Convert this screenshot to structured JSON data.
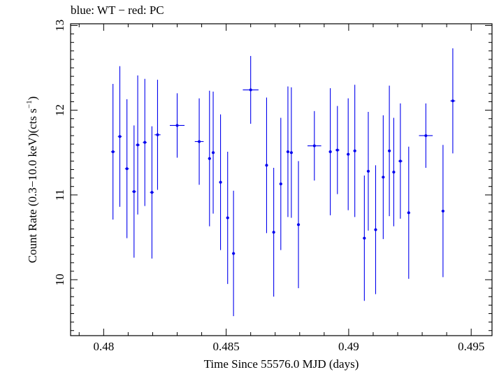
{
  "page": {
    "legend_text": "blue: WT − red: PC"
  },
  "chart_data": {
    "type": "scatter",
    "title": "blue: WT − red: PC",
    "xlabel": "Time Since 55576.0 MJD (days)",
    "ylabel_main": "Count Rate (0.3−10.0 keV)(cts s",
    "ylabel_sup": "−1",
    "ylabel_end": ")",
    "xlim": [
      0.47865,
      0.49585
    ],
    "ylim": [
      9.34,
      13.02
    ],
    "xticks": [
      0.48,
      0.485,
      0.49,
      0.495
    ],
    "xtick_labels": [
      "0.48",
      "0.485",
      "0.49",
      "0.495"
    ],
    "yticks": [
      10,
      11,
      12,
      13
    ],
    "ytick_labels": [
      "10",
      "11",
      "12",
      "13"
    ],
    "grid": false,
    "series": [
      {
        "name": "WT",
        "color": "#0000ee",
        "points": [
          {
            "x": 0.48038,
            "y": 11.51,
            "xerr": 8e-05,
            "yerr": 0.8
          },
          {
            "x": 0.48066,
            "y": 11.69,
            "xerr": 8e-05,
            "yerr": 0.83
          },
          {
            "x": 0.48095,
            "y": 11.31,
            "xerr": 8e-05,
            "yerr": 0.82
          },
          {
            "x": 0.48124,
            "y": 11.04,
            "xerr": 8e-05,
            "yerr": 0.78
          },
          {
            "x": 0.48139,
            "y": 11.59,
            "xerr": 8e-05,
            "yerr": 0.82
          },
          {
            "x": 0.48168,
            "y": 11.62,
            "xerr": 8e-05,
            "yerr": 0.75
          },
          {
            "x": 0.48197,
            "y": 11.03,
            "xerr": 8e-05,
            "yerr": 0.78
          },
          {
            "x": 0.4822,
            "y": 11.71,
            "xerr": 0.00012,
            "yerr": 0.65
          },
          {
            "x": 0.483,
            "y": 11.82,
            "xerr": 0.0003,
            "yerr": 0.38
          },
          {
            "x": 0.4839,
            "y": 11.63,
            "xerr": 0.00018,
            "yerr": 0.51
          },
          {
            "x": 0.48432,
            "y": 11.43,
            "xerr": 6e-05,
            "yerr": 0.8
          },
          {
            "x": 0.48447,
            "y": 11.5,
            "xerr": 6e-05,
            "yerr": 0.72
          },
          {
            "x": 0.48477,
            "y": 11.15,
            "xerr": 6e-05,
            "yerr": 0.8
          },
          {
            "x": 0.48506,
            "y": 10.73,
            "xerr": 6e-05,
            "yerr": 0.78
          },
          {
            "x": 0.4853,
            "y": 10.31,
            "xerr": 6e-05,
            "yerr": 0.74
          },
          {
            "x": 0.486,
            "y": 12.24,
            "xerr": 0.00032,
            "yerr": 0.4
          },
          {
            "x": 0.48665,
            "y": 11.35,
            "xerr": 6e-05,
            "yerr": 0.8
          },
          {
            "x": 0.48694,
            "y": 10.56,
            "xerr": 6e-05,
            "yerr": 0.76
          },
          {
            "x": 0.48723,
            "y": 11.13,
            "xerr": 6e-05,
            "yerr": 0.78
          },
          {
            "x": 0.48752,
            "y": 11.51,
            "xerr": 6e-05,
            "yerr": 0.77
          },
          {
            "x": 0.48766,
            "y": 11.5,
            "xerr": 6e-05,
            "yerr": 0.77
          },
          {
            "x": 0.48795,
            "y": 10.65,
            "xerr": 6e-05,
            "yerr": 0.75
          },
          {
            "x": 0.4886,
            "y": 11.58,
            "xerr": 0.00028,
            "yerr": 0.41
          },
          {
            "x": 0.48925,
            "y": 11.51,
            "xerr": 6e-05,
            "yerr": 0.75
          },
          {
            "x": 0.48954,
            "y": 11.53,
            "xerr": 8e-05,
            "yerr": 0.52
          },
          {
            "x": 0.48998,
            "y": 11.48,
            "xerr": 6e-05,
            "yerr": 0.66
          },
          {
            "x": 0.49025,
            "y": 11.52,
            "xerr": 6e-05,
            "yerr": 0.78
          },
          {
            "x": 0.49064,
            "y": 10.49,
            "xerr": 6e-05,
            "yerr": 0.74
          },
          {
            "x": 0.4908,
            "y": 11.28,
            "xerr": 6e-05,
            "yerr": 0.7
          },
          {
            "x": 0.4911,
            "y": 10.59,
            "xerr": 6e-05,
            "yerr": 0.76
          },
          {
            "x": 0.49141,
            "y": 11.21,
            "xerr": 6e-05,
            "yerr": 0.73
          },
          {
            "x": 0.49166,
            "y": 11.52,
            "xerr": 6e-05,
            "yerr": 0.77
          },
          {
            "x": 0.49184,
            "y": 11.27,
            "xerr": 6e-05,
            "yerr": 0.64
          },
          {
            "x": 0.49211,
            "y": 11.4,
            "xerr": 8e-05,
            "yerr": 0.68
          },
          {
            "x": 0.49245,
            "y": 10.79,
            "xerr": 6e-05,
            "yerr": 0.78
          },
          {
            "x": 0.49315,
            "y": 11.7,
            "xerr": 0.00028,
            "yerr": 0.38
          },
          {
            "x": 0.49385,
            "y": 10.81,
            "xerr": 6e-05,
            "yerr": 0.78
          },
          {
            "x": 0.49425,
            "y": 12.11,
            "xerr": 0.0001,
            "yerr": 0.62
          }
        ]
      }
    ]
  }
}
